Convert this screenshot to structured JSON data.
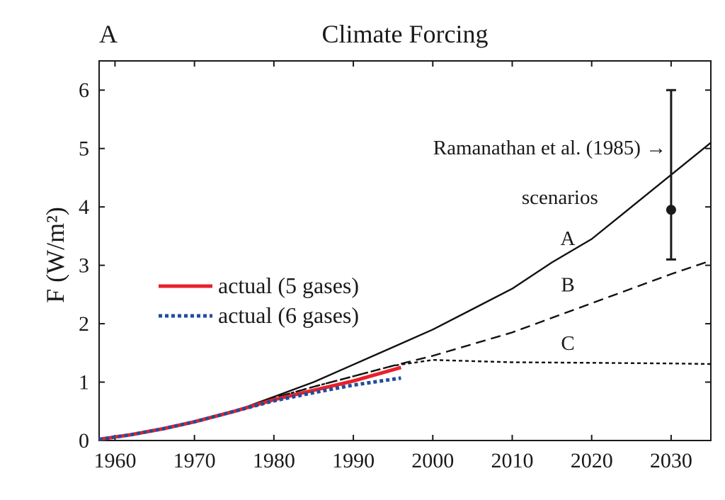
{
  "chart_data": {
    "type": "line",
    "panel_label": "A",
    "title": "Climate Forcing",
    "ylabel": "F (W/m²)",
    "xlabel": "",
    "xlim": [
      1958,
      2035
    ],
    "ylim": [
      0,
      6.5
    ],
    "x_ticks": [
      "1960",
      "1970",
      "1980",
      "1990",
      "2000",
      "2010",
      "2020",
      "2030"
    ],
    "y_ticks": [
      "0",
      "1",
      "2",
      "3",
      "4",
      "5",
      "6"
    ],
    "grid": false,
    "legend": {
      "placement": "center-left",
      "entries": [
        {
          "name": "actual (5 gases)",
          "color": "#e8202a",
          "style": "solid"
        },
        {
          "name": "actual (6 gases)",
          "color": "#1f4e9c",
          "style": "dotted"
        }
      ]
    },
    "scenarios_label": "scenarios",
    "series": [
      {
        "label": "A",
        "style": "solid",
        "color": "#111111",
        "points": [
          [
            1958,
            0.02
          ],
          [
            1962,
            0.1
          ],
          [
            1966,
            0.2
          ],
          [
            1970,
            0.32
          ],
          [
            1975,
            0.5
          ],
          [
            1980,
            0.75
          ],
          [
            1985,
            1.0
          ],
          [
            1990,
            1.3
          ],
          [
            1995,
            1.6
          ],
          [
            2000,
            1.9
          ],
          [
            2005,
            2.25
          ],
          [
            2010,
            2.6
          ],
          [
            2015,
            3.05
          ],
          [
            2020,
            3.45
          ],
          [
            2025,
            4.0
          ],
          [
            2030,
            4.55
          ],
          [
            2035,
            5.1
          ]
        ]
      },
      {
        "label": "B",
        "style": "dashed",
        "color": "#111111",
        "points": [
          [
            1958,
            0.02
          ],
          [
            1962,
            0.1
          ],
          [
            1966,
            0.2
          ],
          [
            1970,
            0.32
          ],
          [
            1975,
            0.5
          ],
          [
            1980,
            0.73
          ],
          [
            1985,
            0.92
          ],
          [
            1990,
            1.1
          ],
          [
            1995,
            1.28
          ],
          [
            2000,
            1.45
          ],
          [
            2005,
            1.65
          ],
          [
            2010,
            1.85
          ],
          [
            2015,
            2.1
          ],
          [
            2020,
            2.35
          ],
          [
            2025,
            2.6
          ],
          [
            2030,
            2.85
          ],
          [
            2035,
            3.08
          ]
        ]
      },
      {
        "label": "C",
        "style": "dotted",
        "color": "#111111",
        "points": [
          [
            1958,
            0.02
          ],
          [
            1962,
            0.1
          ],
          [
            1966,
            0.2
          ],
          [
            1970,
            0.32
          ],
          [
            1975,
            0.5
          ],
          [
            1980,
            0.73
          ],
          [
            1985,
            0.92
          ],
          [
            1990,
            1.1
          ],
          [
            1995,
            1.28
          ],
          [
            2000,
            1.38
          ],
          [
            2005,
            1.36
          ],
          [
            2010,
            1.34
          ],
          [
            2020,
            1.33
          ],
          [
            2030,
            1.32
          ],
          [
            2035,
            1.31
          ]
        ]
      },
      {
        "name": "actual (5 gases)",
        "style": "solid",
        "color": "#e8202a",
        "points": [
          [
            1958,
            0.02
          ],
          [
            1962,
            0.1
          ],
          [
            1966,
            0.2
          ],
          [
            1970,
            0.32
          ],
          [
            1975,
            0.5
          ],
          [
            1980,
            0.7
          ],
          [
            1985,
            0.86
          ],
          [
            1990,
            1.02
          ],
          [
            1996,
            1.25
          ]
        ]
      },
      {
        "name": "actual (6 gases)",
        "style": "dotted",
        "color": "#1f4e9c",
        "points": [
          [
            1958,
            0.02
          ],
          [
            1962,
            0.1
          ],
          [
            1966,
            0.2
          ],
          [
            1970,
            0.32
          ],
          [
            1975,
            0.5
          ],
          [
            1980,
            0.68
          ],
          [
            1985,
            0.82
          ],
          [
            1990,
            0.95
          ],
          [
            1996,
            1.07
          ]
        ]
      }
    ],
    "annotation": {
      "text": "Ramanathan et al. (1985) →",
      "x": 2030,
      "y": 3.95,
      "yerr": [
        3.1,
        6.0
      ]
    }
  }
}
